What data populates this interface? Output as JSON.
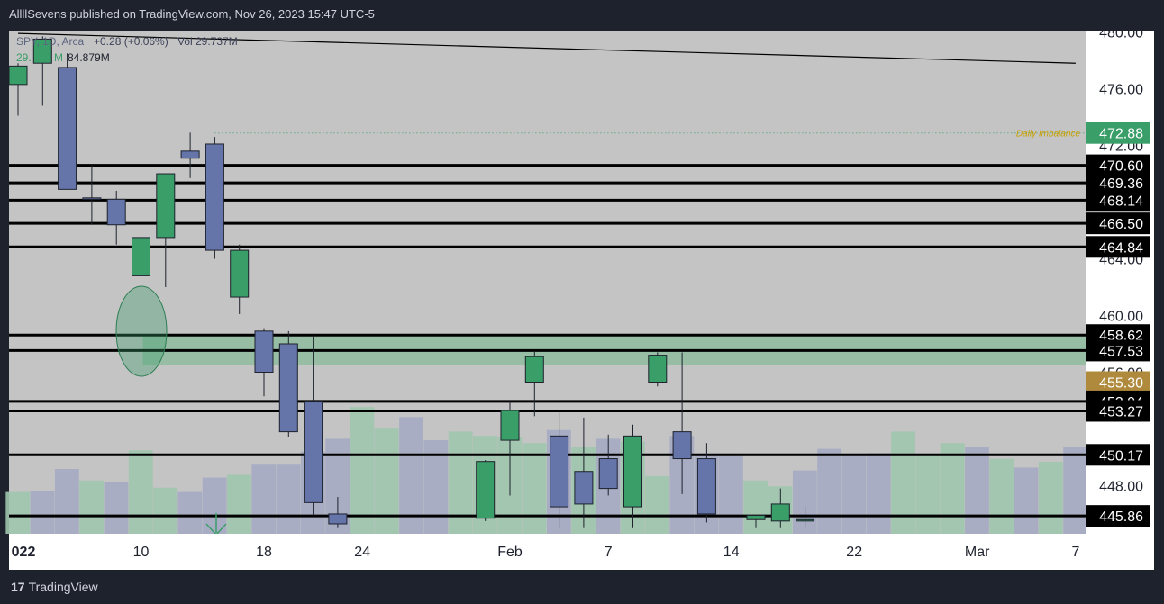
{
  "header": {
    "publish_text": "AllllSevens published on TradingView.com, Nov 26, 2023 15:47 UTC-5"
  },
  "footer": {
    "logo_mark": "17",
    "logo_text": "TradingView"
  },
  "legend": {
    "line1": [
      "SPY, 1D, Arca",
      "+0.28 (+0.06%)",
      "Vol",
      "29.737M"
    ],
    "line2": [
      "29.",
      "M",
      "84.879M"
    ]
  },
  "colors": {
    "chart_bg": "#c4c4c4",
    "axis_bg": "#ffffff",
    "up": "#3a9e69",
    "down": "#6575aa",
    "level_line": "#000000",
    "zone": "#8fbc9f",
    "imbalance": "#c8a000",
    "dark": "#1e222d"
  },
  "chart_data": {
    "type": "candlestick",
    "symbol": "SPY",
    "timeframe": "1D",
    "exchange": "Arca",
    "x_ticks": [
      {
        "label": "022",
        "index": 0
      },
      {
        "label": "10",
        "index": 5
      },
      {
        "label": "18",
        "index": 10
      },
      {
        "label": "24",
        "index": 14
      },
      {
        "label": "Feb",
        "index": 20
      },
      {
        "label": "7",
        "index": 24
      },
      {
        "label": "14",
        "index": 29
      },
      {
        "label": "22",
        "index": 34
      },
      {
        "label": "Mar",
        "index": 39
      },
      {
        "label": "7",
        "index": 43
      }
    ],
    "y_ticks": [
      480,
      476,
      472,
      464,
      460,
      456,
      448
    ],
    "y_range": [
      444.6,
      480.1
    ],
    "price_labels": [
      {
        "value": 472.88,
        "text": "472.88",
        "style": "green"
      },
      {
        "value": 470.6,
        "text": "470.60",
        "style": "black"
      },
      {
        "value": 469.36,
        "text": "469.36",
        "style": "black"
      },
      {
        "value": 468.14,
        "text": "468.14",
        "style": "black"
      },
      {
        "value": 466.5,
        "text": "466.50",
        "style": "black"
      },
      {
        "value": 464.84,
        "text": "464.84",
        "style": "black"
      },
      {
        "value": 458.62,
        "text": "458.62",
        "style": "black"
      },
      {
        "value": 457.53,
        "text": "457.53",
        "style": "black"
      },
      {
        "value": 455.3,
        "text": "455.30",
        "style": "gold"
      },
      {
        "value": 453.94,
        "text": "453.94",
        "style": "black"
      },
      {
        "value": 453.27,
        "text": "453.27",
        "style": "black"
      },
      {
        "value": 450.17,
        "text": "450.17",
        "style": "black"
      },
      {
        "value": 445.86,
        "text": "445.86",
        "style": "black"
      }
    ],
    "horizontal_levels": [
      470.6,
      469.36,
      468.14,
      466.5,
      464.84,
      458.62,
      457.53,
      453.94,
      453.27,
      450.17,
      445.86
    ],
    "imbalance": {
      "value": 472.88,
      "label": "Daily Imbalance",
      "from_index": 8
    },
    "zone": {
      "from": 456.5,
      "to": 458.62,
      "from_index": 5
    },
    "trendline": {
      "from": {
        "index": 0,
        "value": 479.9
      },
      "to": {
        "index": 43,
        "value": 477.8
      }
    },
    "candles": [
      {
        "i": 0,
        "o": 476.3,
        "h": 477.8,
        "l": 474.1,
        "c": 477.6
      },
      {
        "i": 1,
        "o": 477.8,
        "h": 479.7,
        "l": 474.8,
        "c": 479.5
      },
      {
        "i": 2,
        "o": 477.5,
        "h": 478.5,
        "l": 469.0,
        "c": 468.9
      },
      {
        "i": 3,
        "o": 468.3,
        "h": 470.6,
        "l": 466.4,
        "c": 468.2
      },
      {
        "i": 4,
        "o": 468.2,
        "h": 468.8,
        "l": 465.0,
        "c": 466.4
      },
      {
        "i": 5,
        "o": 462.8,
        "h": 465.7,
        "l": 461.5,
        "c": 465.5
      },
      {
        "i": 6,
        "o": 465.5,
        "h": 470.0,
        "l": 462.0,
        "c": 470.0
      },
      {
        "i": 7,
        "o": 471.6,
        "h": 472.9,
        "l": 469.7,
        "c": 471.1
      },
      {
        "i": 8,
        "o": 472.1,
        "h": 472.6,
        "l": 464.0,
        "c": 464.6
      },
      {
        "i": 9,
        "o": 461.3,
        "h": 465.0,
        "l": 460.1,
        "c": 464.6
      },
      {
        "i": 10,
        "o": 458.9,
        "h": 459.1,
        "l": 454.3,
        "c": 456.0
      },
      {
        "i": 11,
        "o": 458.0,
        "h": 458.9,
        "l": 451.4,
        "c": 451.8
      },
      {
        "i": 12,
        "o": 453.9,
        "h": 458.6,
        "l": 445.9,
        "c": 446.8
      },
      {
        "i": 13,
        "o": 446.0,
        "h": 447.2,
        "l": 445.0,
        "c": 445.3
      },
      {
        "i": 19,
        "o": 445.7,
        "h": 449.8,
        "l": 445.5,
        "c": 449.7
      },
      {
        "i": 20,
        "o": 451.2,
        "h": 453.9,
        "l": 447.3,
        "c": 453.3
      },
      {
        "i": 21,
        "o": 455.3,
        "h": 457.5,
        "l": 452.9,
        "c": 457.1
      },
      {
        "i": 22,
        "o": 451.5,
        "h": 453.3,
        "l": 445.0,
        "c": 446.5
      },
      {
        "i": 23,
        "o": 449.0,
        "h": 452.8,
        "l": 445.0,
        "c": 446.7
      },
      {
        "i": 24,
        "o": 449.9,
        "h": 451.6,
        "l": 447.3,
        "c": 447.8
      },
      {
        "i": 25,
        "o": 446.5,
        "h": 452.3,
        "l": 445.0,
        "c": 451.5
      },
      {
        "i": 26,
        "o": 455.3,
        "h": 457.4,
        "l": 455.0,
        "c": 457.2
      },
      {
        "i": 27,
        "o": 451.8,
        "h": 457.4,
        "l": 447.4,
        "c": 449.9
      },
      {
        "i": 28,
        "o": 449.9,
        "h": 451.0,
        "l": 445.4,
        "c": 446.0
      },
      {
        "i": 30,
        "o": 445.6,
        "h": 445.9,
        "l": 445.0,
        "c": 445.9
      },
      {
        "i": 31,
        "o": 445.5,
        "h": 447.8,
        "l": 445.0,
        "c": 446.7
      },
      {
        "i": 32,
        "o": 445.5,
        "h": 446.5,
        "l": 445.0,
        "c": 445.6
      }
    ],
    "volume": [
      {
        "i": 0,
        "v": 29,
        "up": true
      },
      {
        "i": 1,
        "v": 30,
        "up": false
      },
      {
        "i": 2,
        "v": 45,
        "up": false
      },
      {
        "i": 3,
        "v": 37,
        "up": true
      },
      {
        "i": 4,
        "v": 36,
        "up": false
      },
      {
        "i": 5,
        "v": 58,
        "up": true
      },
      {
        "i": 6,
        "v": 32,
        "up": true
      },
      {
        "i": 7,
        "v": 29,
        "up": false
      },
      {
        "i": 8,
        "v": 39,
        "up": false
      },
      {
        "i": 9,
        "v": 41,
        "up": true
      },
      {
        "i": 10,
        "v": 48,
        "up": false
      },
      {
        "i": 11,
        "v": 48,
        "up": false
      },
      {
        "i": 12,
        "v": 57,
        "up": false
      },
      {
        "i": 13,
        "v": 66,
        "up": false
      },
      {
        "i": 14,
        "v": 88,
        "up": true
      },
      {
        "i": 15,
        "v": 73,
        "up": true
      },
      {
        "i": 16,
        "v": 81,
        "up": false
      },
      {
        "i": 17,
        "v": 65,
        "up": false
      },
      {
        "i": 18,
        "v": 71,
        "up": true
      },
      {
        "i": 19,
        "v": 68,
        "up": true
      },
      {
        "i": 20,
        "v": 67,
        "up": true
      },
      {
        "i": 21,
        "v": 63,
        "up": true
      },
      {
        "i": 22,
        "v": 72,
        "up": false
      },
      {
        "i": 23,
        "v": 60,
        "up": true
      },
      {
        "i": 24,
        "v": 66,
        "up": false
      },
      {
        "i": 25,
        "v": 64,
        "up": true
      },
      {
        "i": 26,
        "v": 40,
        "up": true
      },
      {
        "i": 27,
        "v": 68,
        "up": false
      },
      {
        "i": 28,
        "v": 55,
        "up": false
      },
      {
        "i": 29,
        "v": 54,
        "up": false
      },
      {
        "i": 30,
        "v": 37,
        "up": true
      },
      {
        "i": 31,
        "v": 33,
        "up": true
      },
      {
        "i": 32,
        "v": 44,
        "up": false
      },
      {
        "i": 33,
        "v": 59,
        "up": false
      },
      {
        "i": 34,
        "v": 55,
        "up": false
      },
      {
        "i": 35,
        "v": 56,
        "up": false
      },
      {
        "i": 36,
        "v": 71,
        "up": true
      },
      {
        "i": 37,
        "v": 54,
        "up": true
      },
      {
        "i": 38,
        "v": 63,
        "up": true
      },
      {
        "i": 39,
        "v": 60,
        "up": false
      },
      {
        "i": 40,
        "v": 52,
        "up": true
      },
      {
        "i": 41,
        "v": 46,
        "up": false
      },
      {
        "i": 42,
        "v": 50,
        "up": true
      },
      {
        "i": 43,
        "v": 60,
        "up": false
      }
    ]
  }
}
